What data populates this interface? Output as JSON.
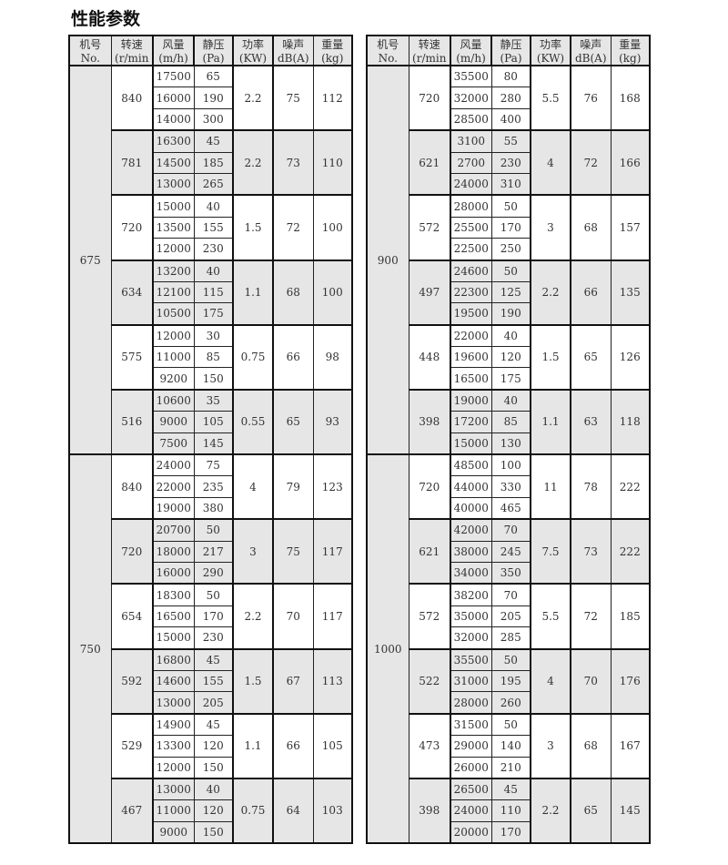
{
  "title": "性能参数",
  "headers": [
    [
      "机号",
      "No."
    ],
    [
      "转速",
      "(r/min"
    ],
    [
      "风量",
      "(m/h)"
    ],
    [
      "静压",
      "(Pa)"
    ],
    [
      "功率",
      "(KW)"
    ],
    [
      "噪声",
      "dB(A)"
    ],
    [
      "重量",
      "(kg)"
    ]
  ],
  "tables": [
    {
      "models": [
        {
          "no": "675",
          "groups": [
            {
              "speed": "840",
              "flow": [
                "17500",
                "16000",
                "14000"
              ],
              "pressure": [
                "65",
                "190",
                "300"
              ],
              "power": "2.2",
              "noise": "75",
              "weight": "112"
            },
            {
              "speed": "781",
              "flow": [
                "16300",
                "14500",
                "13000"
              ],
              "pressure": [
                "45",
                "185",
                "265"
              ],
              "power": "2.2",
              "noise": "73",
              "weight": "110"
            },
            {
              "speed": "720",
              "flow": [
                "15000",
                "13500",
                "12000"
              ],
              "pressure": [
                "40",
                "155",
                "230"
              ],
              "power": "1.5",
              "noise": "72",
              "weight": "100"
            },
            {
              "speed": "634",
              "flow": [
                "13200",
                "12100",
                "10500"
              ],
              "pressure": [
                "40",
                "115",
                "175"
              ],
              "power": "1.1",
              "noise": "68",
              "weight": "100"
            },
            {
              "speed": "575",
              "flow": [
                "12000",
                "11000",
                "9200"
              ],
              "pressure": [
                "30",
                "85",
                "150"
              ],
              "power": "0.75",
              "noise": "66",
              "weight": "98"
            },
            {
              "speed": "516",
              "flow": [
                "10600",
                "9000",
                "7500"
              ],
              "pressure": [
                "35",
                "105",
                "145"
              ],
              "power": "0.55",
              "noise": "65",
              "weight": "93"
            }
          ]
        },
        {
          "no": "750",
          "groups": [
            {
              "speed": "840",
              "flow": [
                "24000",
                "22000",
                "19000"
              ],
              "pressure": [
                "75",
                "235",
                "380"
              ],
              "power": "4",
              "noise": "79",
              "weight": "123"
            },
            {
              "speed": "720",
              "flow": [
                "20700",
                "18000",
                "16000"
              ],
              "pressure": [
                "50",
                "217",
                "290"
              ],
              "power": "3",
              "noise": "75",
              "weight": "117"
            },
            {
              "speed": "654",
              "flow": [
                "18300",
                "16500",
                "15000"
              ],
              "pressure": [
                "50",
                "170",
                "230"
              ],
              "power": "2.2",
              "noise": "70",
              "weight": "117"
            },
            {
              "speed": "592",
              "flow": [
                "16800",
                "14600",
                "13000"
              ],
              "pressure": [
                "45",
                "155",
                "205"
              ],
              "power": "1.5",
              "noise": "67",
              "weight": "113"
            },
            {
              "speed": "529",
              "flow": [
                "14900",
                "13300",
                "12000"
              ],
              "pressure": [
                "45",
                "120",
                "150"
              ],
              "power": "1.1",
              "noise": "66",
              "weight": "105"
            },
            {
              "speed": "467",
              "flow": [
                "13000",
                "11000",
                "9000"
              ],
              "pressure": [
                "40",
                "120",
                "150"
              ],
              "power": "0.75",
              "noise": "64",
              "weight": "103"
            }
          ]
        }
      ]
    },
    {
      "models": [
        {
          "no": "900",
          "groups": [
            {
              "speed": "720",
              "flow": [
                "35500",
                "32000",
                "28500"
              ],
              "pressure": [
                "80",
                "280",
                "400"
              ],
              "power": "5.5",
              "noise": "76",
              "weight": "168"
            },
            {
              "speed": "621",
              "flow": [
                "3100",
                "2700",
                "24000"
              ],
              "pressure": [
                "55",
                "230",
                "310"
              ],
              "power": "4",
              "noise": "72",
              "weight": "166"
            },
            {
              "speed": "572",
              "flow": [
                "28000",
                "25500",
                "22500"
              ],
              "pressure": [
                "50",
                "170",
                "250"
              ],
              "power": "3",
              "noise": "68",
              "weight": "157"
            },
            {
              "speed": "497",
              "flow": [
                "24600",
                "22300",
                "19500"
              ],
              "pressure": [
                "50",
                "125",
                "190"
              ],
              "power": "2.2",
              "noise": "66",
              "weight": "135"
            },
            {
              "speed": "448",
              "flow": [
                "22000",
                "19600",
                "16500"
              ],
              "pressure": [
                "40",
                "120",
                "175"
              ],
              "power": "1.5",
              "noise": "65",
              "weight": "126"
            },
            {
              "speed": "398",
              "flow": [
                "19000",
                "17200",
                "15000"
              ],
              "pressure": [
                "40",
                "85",
                "130"
              ],
              "power": "1.1",
              "noise": "63",
              "weight": "118"
            }
          ]
        },
        {
          "no": "1000",
          "groups": [
            {
              "speed": "720",
              "flow": [
                "48500",
                "44000",
                "40000"
              ],
              "pressure": [
                "100",
                "330",
                "465"
              ],
              "power": "11",
              "noise": "78",
              "weight": "222"
            },
            {
              "speed": "621",
              "flow": [
                "42000",
                "38000",
                "34000"
              ],
              "pressure": [
                "70",
                "245",
                "350"
              ],
              "power": "7.5",
              "noise": "73",
              "weight": "222"
            },
            {
              "speed": "572",
              "flow": [
                "38200",
                "35000",
                "32000"
              ],
              "pressure": [
                "70",
                "205",
                "285"
              ],
              "power": "5.5",
              "noise": "72",
              "weight": "185"
            },
            {
              "speed": "522",
              "flow": [
                "35500",
                "31000",
                "28000"
              ],
              "pressure": [
                "50",
                "195",
                "260"
              ],
              "power": "4",
              "noise": "70",
              "weight": "176"
            },
            {
              "speed": "473",
              "flow": [
                "31500",
                "29000",
                "26000"
              ],
              "pressure": [
                "50",
                "140",
                "210"
              ],
              "power": "3",
              "noise": "68",
              "weight": "167"
            },
            {
              "speed": "398",
              "flow": [
                "26500",
                "24000",
                "20000"
              ],
              "pressure": [
                "45",
                "110",
                "170"
              ],
              "power": "2.2",
              "noise": "65",
              "weight": "145"
            }
          ]
        }
      ]
    }
  ]
}
